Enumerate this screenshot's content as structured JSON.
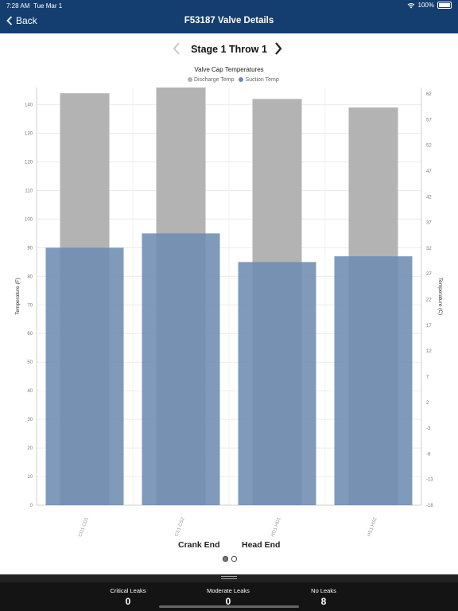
{
  "status": {
    "time": "7:28 AM",
    "date": "Tue Mar 1",
    "battery": "100%",
    "wifi_icon": "wifi-icon"
  },
  "nav": {
    "back_label": "Back",
    "title": "F53187 Valve Details"
  },
  "stage": {
    "label": "Stage 1 Throw 1"
  },
  "chart_data": {
    "type": "bar",
    "title": "Valve Cap Temperatures",
    "categories": [
      "CD1 CD1",
      "CS1 CS2",
      "HD1 HD1",
      "HS1 HS2"
    ],
    "series": [
      {
        "name": "Discharge Temp",
        "values": [
          144,
          146,
          142,
          139
        ],
        "color": "#b3b3b3"
      },
      {
        "name": "Suction Temp",
        "values": [
          90,
          95,
          85,
          87
        ],
        "color": "#6d8cb0"
      }
    ],
    "ylabel": "Temperature (F)",
    "y2label": "Temperature (C)",
    "ylim": [
      0,
      146
    ],
    "yticks": [
      "0",
      "10",
      "20",
      "30",
      "40",
      "50",
      "60",
      "70",
      "80",
      "90",
      "100",
      "110",
      "120",
      "130",
      "140"
    ],
    "y2ticks": [
      "-18",
      "-13",
      "-8",
      "-3",
      "2",
      "7",
      "12",
      "17",
      "22",
      "27",
      "32",
      "37",
      "42",
      "47",
      "52",
      "57",
      "62"
    ],
    "legend": "top",
    "grid": true
  },
  "groups": {
    "crank": "Crank End",
    "head": "Head End"
  },
  "footer": {
    "critical_label": "Critical Leaks",
    "critical_value": "0",
    "moderate_label": "Moderate Leaks",
    "moderate_value": "0",
    "none_label": "No Leaks",
    "none_value": "8"
  }
}
